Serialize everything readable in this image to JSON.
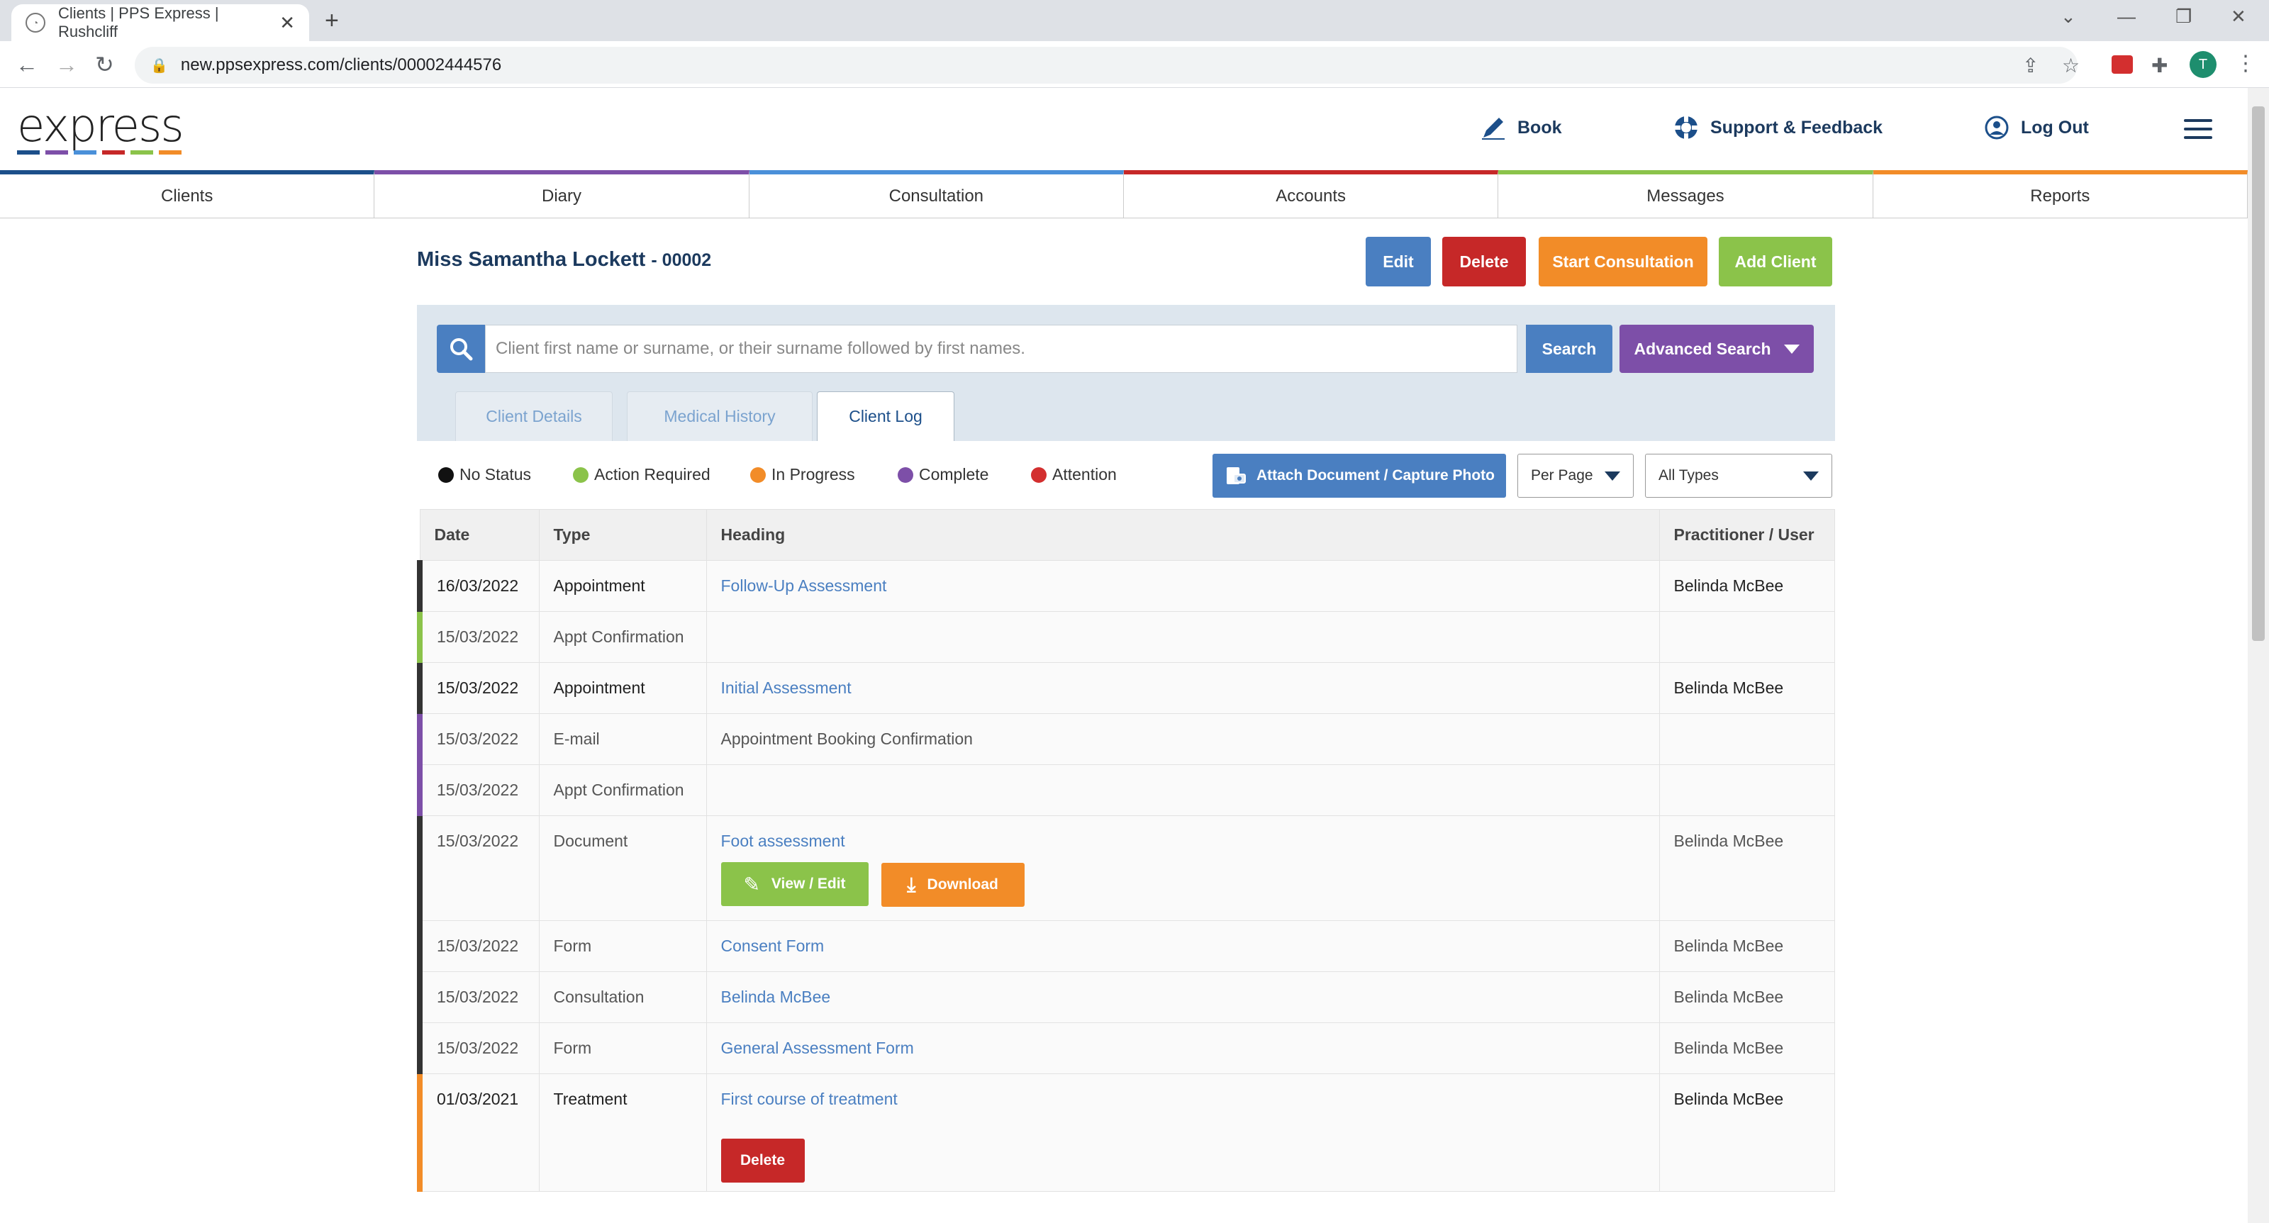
{
  "browser": {
    "tab_title": "Clients | PPS Express | Rushcliff",
    "url": "new.ppsexpress.com/clients/00002444576",
    "profile_initial": "T"
  },
  "header": {
    "logo": "express",
    "logo_colors": [
      "#1c4f8a",
      "#7d4fa8",
      "#4a90d9",
      "#c62828",
      "#8bc34a",
      "#f28c28"
    ],
    "book": "Book",
    "support": "Support & Feedback",
    "logout": "Log Out"
  },
  "nav": [
    {
      "label": "Clients",
      "color": "#1c4f8a"
    },
    {
      "label": "Diary",
      "color": "#7d4fa8"
    },
    {
      "label": "Consultation",
      "color": "#4a90d9"
    },
    {
      "label": "Accounts",
      "color": "#c62828"
    },
    {
      "label": "Messages",
      "color": "#8bc34a"
    },
    {
      "label": "Reports",
      "color": "#f28c28"
    }
  ],
  "client": {
    "name": "Miss Samantha Lockett",
    "number": "- 00002"
  },
  "actions": {
    "edit": "Edit",
    "delete": "Delete",
    "start_consultation": "Start Consultation",
    "add_client": "Add Client"
  },
  "search": {
    "placeholder": "Client first name or surname, or their surname followed by first names.",
    "button": "Search",
    "advanced": "Advanced Search"
  },
  "subtabs": {
    "details": "Client Details",
    "medical": "Medical History",
    "log": "Client Log"
  },
  "legend": [
    {
      "label": "No Status",
      "color": "#111111"
    },
    {
      "label": "Action Required",
      "color": "#8bc34a"
    },
    {
      "label": "In Progress",
      "color": "#f28c28"
    },
    {
      "label": "Complete",
      "color": "#7d4fa8"
    },
    {
      "label": "Attention",
      "color": "#d32f2f"
    }
  ],
  "toolbar": {
    "attach": "Attach Document / Capture Photo",
    "per_page": "Per Page",
    "types": "All Types"
  },
  "table": {
    "headers": [
      "Date",
      "Type",
      "Heading",
      "Practitioner / User"
    ],
    "rows": [
      {
        "date": "16/03/2022",
        "type": "Appointment",
        "heading": "Follow-Up Assessment",
        "user": "Belinda McBee",
        "status": "#333333",
        "bold": true,
        "link": true
      },
      {
        "date": "15/03/2022",
        "type": "Appt Confirmation",
        "heading": "",
        "user": "",
        "status": "#8bc34a",
        "bold": false,
        "link": false
      },
      {
        "date": "15/03/2022",
        "type": "Appointment",
        "heading": "Initial Assessment",
        "user": "Belinda McBee",
        "status": "#333333",
        "bold": true,
        "link": true
      },
      {
        "date": "15/03/2022",
        "type": "E-mail",
        "heading": "Appointment Booking Confirmation",
        "user": "",
        "status": "#7d4fa8",
        "bold": false,
        "link": false
      },
      {
        "date": "15/03/2022",
        "type": "Appt Confirmation",
        "heading": "",
        "user": "",
        "status": "#7d4fa8",
        "bold": false,
        "link": false
      },
      {
        "date": "15/03/2022",
        "type": "Document",
        "heading": "Foot assessment",
        "user": "Belinda McBee",
        "status": "#333333",
        "bold": false,
        "link": true,
        "buttons": [
          "View / Edit",
          "Download"
        ]
      },
      {
        "date": "15/03/2022",
        "type": "Form",
        "heading": "Consent Form",
        "user": "Belinda McBee",
        "status": "#333333",
        "bold": false,
        "link": true
      },
      {
        "date": "15/03/2022",
        "type": "Consultation",
        "heading": "Belinda McBee",
        "user": "Belinda McBee",
        "status": "#333333",
        "bold": false,
        "link": true
      },
      {
        "date": "15/03/2022",
        "type": "Form",
        "heading": "General Assessment Form",
        "user": "Belinda McBee",
        "status": "#333333",
        "bold": false,
        "link": true
      },
      {
        "date": "01/03/2021",
        "type": "Treatment",
        "heading": "First course of treatment",
        "user": "Belinda McBee",
        "status": "#f28c28",
        "bold": true,
        "link": true,
        "buttons": [
          "Delete"
        ]
      }
    ]
  }
}
